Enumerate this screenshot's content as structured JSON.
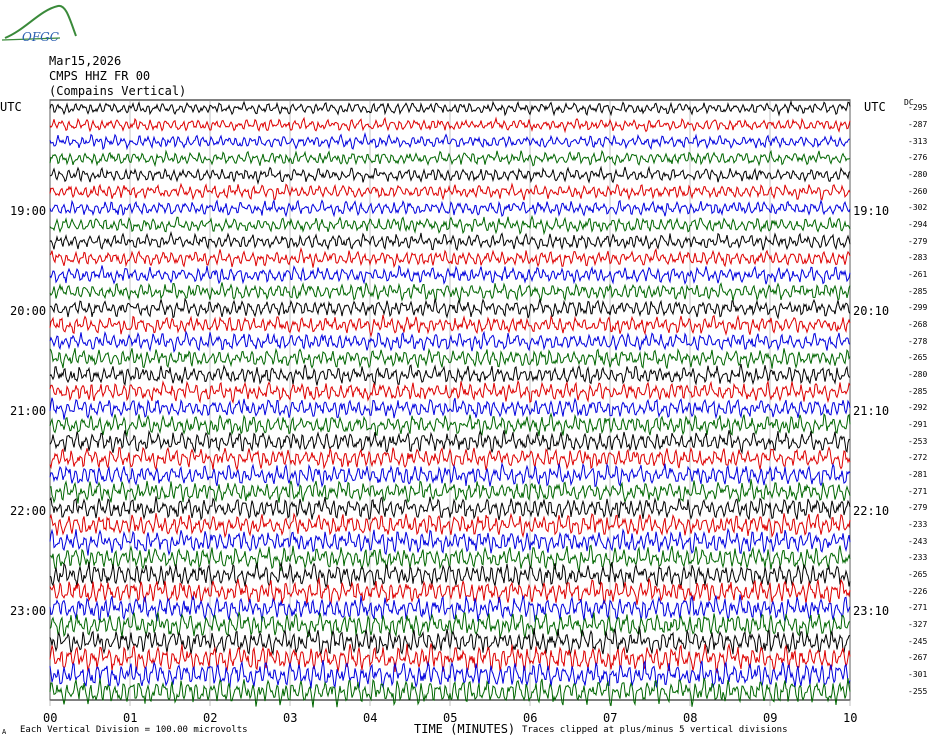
{
  "logo": {
    "text": "OFGC",
    "color": "#3a8a3a"
  },
  "header": {
    "date": "Mar15,2026",
    "station": "CMPS HHZ FR 00",
    "location": "(Compains Vertical)"
  },
  "labels": {
    "utc_left": "UTC",
    "utc_right": "UTC",
    "dc": "DC"
  },
  "footer": {
    "scale_mark": "A",
    "division": "Each Vertical Division =  100.00 microvolts",
    "clip": "Traces clipped at plus/minus 5 vertical divisions"
  },
  "chart_data": {
    "type": "line",
    "title": "",
    "xlabel": "TIME (MINUTES)",
    "ylabel": "",
    "x_ticks": [
      "00",
      "01",
      "02",
      "03",
      "04",
      "05",
      "06",
      "07",
      "08",
      "09",
      "10"
    ],
    "xlim": [
      0,
      10
    ],
    "trace_colors": [
      "#000000",
      "#dd0000",
      "#0000dd",
      "#006600"
    ],
    "left_hour_labels": [
      "19:00",
      "20:00",
      "21:00",
      "22:00",
      "23:00"
    ],
    "right_hour_labels": [
      "19:10",
      "20:10",
      "21:10",
      "22:10",
      "23:10"
    ],
    "dc_offsets": [
      -295,
      -287,
      -313,
      -276,
      -280,
      -260,
      -302,
      -294,
      -279,
      -283,
      -261,
      -285,
      -299,
      -268,
      -278,
      -265,
      -280,
      -285,
      -292,
      -291,
      -253,
      -272,
      -281,
      -271,
      -279,
      -233,
      -243,
      -233,
      -265,
      -226,
      -271,
      -327,
      -245,
      -267,
      -301,
      -255
    ],
    "grid": true
  }
}
